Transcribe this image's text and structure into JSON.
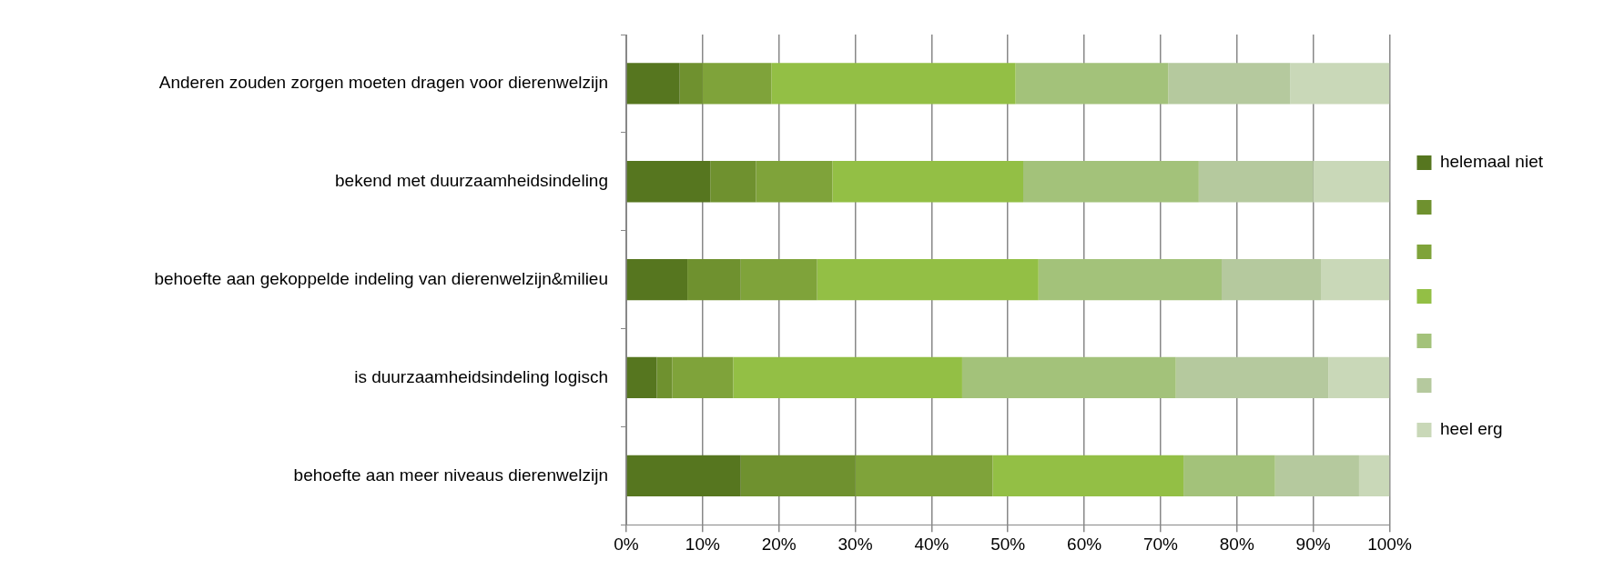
{
  "chart_data": {
    "type": "bar",
    "orientation": "horizontal",
    "stacked": true,
    "categories": [
      "Anderen zouden zorgen moeten dragen voor dierenwelzijn",
      "bekend met duurzaamheidsindeling",
      "behoefte aan gekoppelde indeling van dierenwelzijn&milieu",
      "is duurzaamheidsindeling logisch",
      "behoefte aan meer niveaus dierenwelzijn"
    ],
    "series": [
      {
        "name": "helemaal niet",
        "color": "#56761f",
        "values": [
          7,
          11,
          8,
          4,
          15
        ]
      },
      {
        "color": "#6f912f",
        "values": [
          3,
          6,
          7,
          2,
          15
        ]
      },
      {
        "color": "#7fa33a",
        "values": [
          9,
          10,
          10,
          8,
          18
        ]
      },
      {
        "color": "#93bf45",
        "values": [
          32,
          25,
          29,
          30,
          25
        ]
      },
      {
        "color": "#a3c27a",
        "values": [
          20,
          23,
          24,
          28,
          12
        ]
      },
      {
        "color": "#b5c99e",
        "values": [
          16,
          15,
          13,
          20,
          11
        ]
      },
      {
        "name": "heel erg",
        "color": "#c9d8b8",
        "values": [
          13,
          10,
          9,
          8,
          4
        ]
      }
    ],
    "xlim": [
      0,
      100
    ],
    "xticks": [
      {
        "value": 0,
        "label": "0%"
      },
      {
        "value": 10,
        "label": "10%"
      },
      {
        "value": 20,
        "label": "20%"
      },
      {
        "value": 30,
        "label": "30%"
      },
      {
        "value": 40,
        "label": "40%"
      },
      {
        "value": 50,
        "label": "50%"
      },
      {
        "value": 60,
        "label": "60%"
      },
      {
        "value": 70,
        "label": "70%"
      },
      {
        "value": 80,
        "label": "80%"
      },
      {
        "value": 90,
        "label": "90%"
      },
      {
        "value": 100,
        "label": "100%"
      }
    ],
    "grid": "x",
    "legend": "right"
  }
}
